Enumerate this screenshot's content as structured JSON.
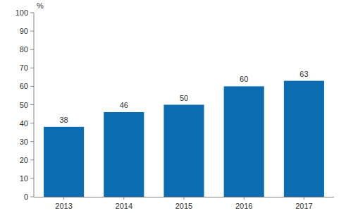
{
  "chart_data": {
    "type": "bar",
    "y_label": "%",
    "categories": [
      "2013",
      "2014",
      "2015",
      "2016",
      "2017"
    ],
    "values": [
      38,
      46,
      50,
      60,
      63
    ],
    "color": "#0b6cb2",
    "ylim": [
      0,
      100
    ],
    "yticks": [
      0,
      10,
      20,
      30,
      40,
      50,
      60,
      70,
      80,
      90,
      100
    ],
    "grid": false,
    "data_labels": true
  }
}
